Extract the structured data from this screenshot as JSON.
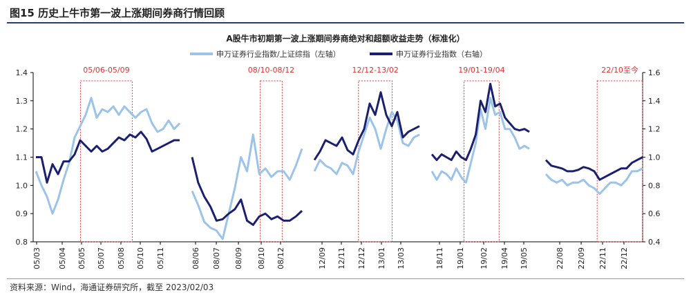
{
  "figure_title": "图15 历史上牛市第一波上涨期间券商行情回顾",
  "source": "资料来源：Wind，海通证券研究所，截至 2023/02/03",
  "chart_data": {
    "type": "line",
    "title": "A股牛市初期第一波上涨期间券商绝对和超额收益走势（标准化）",
    "legend_position": "top",
    "grid": false,
    "y_left": {
      "label": "",
      "ylim": [
        0.8,
        1.4
      ],
      "ticks": [
        "0.8",
        "0.9",
        "1.0",
        "1.1",
        "1.2",
        "1.3",
        "1.4"
      ]
    },
    "y_right": {
      "label": "",
      "ylim": [
        0.4,
        1.6
      ],
      "ticks": [
        "0.4",
        "0.6",
        "0.8",
        "1.0",
        "1.2",
        "1.4",
        "1.6"
      ]
    },
    "x_tick_labels": [
      "05/03",
      "05/04",
      "05/05",
      "05/07",
      "05/08",
      "05/10",
      "05/11",
      "08/06",
      "08/07",
      "08/09",
      "08/10",
      "08/12",
      "12/09",
      "12/11",
      "12/12",
      "13/01",
      "13/03",
      "18/11",
      "19/01",
      "19/02",
      "19/04",
      "19/05",
      "22/08",
      "22/09",
      "22/11",
      "22/12"
    ],
    "highlight_periods": [
      {
        "label": "05/06-05/09",
        "segment": 0,
        "start": 0.31,
        "end": 0.67
      },
      {
        "label": "08/10-08/12",
        "segment": 1,
        "start": 0.62,
        "end": 0.82
      },
      {
        "label": "12/12-13/02",
        "segment": 2,
        "start": 0.42,
        "end": 0.74
      },
      {
        "label": "19/01-19/04",
        "segment": 3,
        "start": 0.33,
        "end": 0.69
      },
      {
        "label": "22/10至今",
        "segment": 4,
        "start": 0.53,
        "end": 1.0
      }
    ],
    "series": [
      {
        "name": "申万证券行业指数/上证综指（左轴）",
        "axis": "left",
        "color": "#9cc3ea",
        "segments": [
          [
            1.05,
            1.0,
            0.96,
            0.9,
            0.95,
            1.02,
            1.08,
            1.17,
            1.21,
            1.25,
            1.31,
            1.24,
            1.27,
            1.26,
            1.28,
            1.25,
            1.28,
            1.26,
            1.24,
            1.26,
            1.27,
            1.22,
            1.19,
            1.2,
            1.23,
            1.2,
            1.22
          ],
          [
            0.98,
            0.93,
            0.87,
            0.85,
            0.84,
            0.81,
            0.9,
            0.99,
            1.1,
            1.05,
            1.18,
            1.04,
            1.06,
            1.03,
            1.05,
            1.05,
            1.02,
            1.07,
            1.13
          ],
          [
            1.05,
            1.09,
            1.07,
            1.06,
            1.04,
            1.08,
            1.07,
            1.04,
            1.12,
            1.18,
            1.24,
            1.2,
            1.13,
            1.2,
            1.26,
            1.23,
            1.15,
            1.14,
            1.17,
            1.18
          ],
          [
            1.05,
            1.02,
            1.05,
            1.04,
            1.02,
            1.06,
            1.03,
            1.01,
            1.08,
            1.15,
            1.27,
            1.2,
            1.31,
            1.25,
            1.26,
            1.2,
            1.2,
            1.17,
            1.13,
            1.14,
            1.13
          ],
          [
            1.04,
            1.02,
            1.01,
            1.02,
            1.0,
            1.01,
            1.01,
            1.02,
            1.0,
            0.99,
            0.97,
            0.99,
            1.01,
            1.01,
            1.0,
            1.02,
            1.05,
            1.05,
            1.06
          ]
        ]
      },
      {
        "name": "申万证券行业指数（右轴）",
        "axis": "right",
        "color": "#1a1f6e",
        "segments": [
          [
            1.0,
            1.0,
            0.82,
            0.95,
            0.88,
            0.97,
            0.97,
            1.02,
            1.12,
            1.08,
            1.04,
            1.08,
            1.04,
            1.06,
            1.1,
            1.14,
            1.12,
            1.16,
            1.14,
            1.18,
            1.13,
            1.04,
            1.06,
            1.08,
            1.1,
            1.12,
            1.12
          ],
          [
            1.0,
            0.82,
            0.72,
            0.65,
            0.55,
            0.56,
            0.6,
            0.63,
            0.7,
            0.55,
            0.52,
            0.58,
            0.6,
            0.56,
            0.58,
            0.55,
            0.55,
            0.58,
            0.62
          ],
          [
            0.98,
            1.04,
            1.12,
            1.1,
            1.08,
            1.14,
            1.05,
            1.02,
            1.12,
            1.2,
            1.38,
            1.3,
            1.46,
            1.3,
            1.22,
            1.32,
            1.14,
            1.18,
            1.2,
            1.22
          ],
          [
            1.02,
            0.98,
            1.02,
            1.0,
            0.98,
            1.04,
            1.0,
            0.98,
            1.06,
            1.16,
            1.4,
            1.32,
            1.52,
            1.36,
            1.38,
            1.28,
            1.24,
            1.2,
            1.19,
            1.2,
            1.18
          ],
          [
            0.98,
            0.94,
            0.93,
            0.92,
            0.9,
            0.9,
            0.91,
            0.93,
            0.92,
            0.9,
            0.84,
            0.86,
            0.88,
            0.9,
            0.92,
            0.92,
            0.96,
            0.98,
            1.0
          ]
        ]
      }
    ]
  }
}
